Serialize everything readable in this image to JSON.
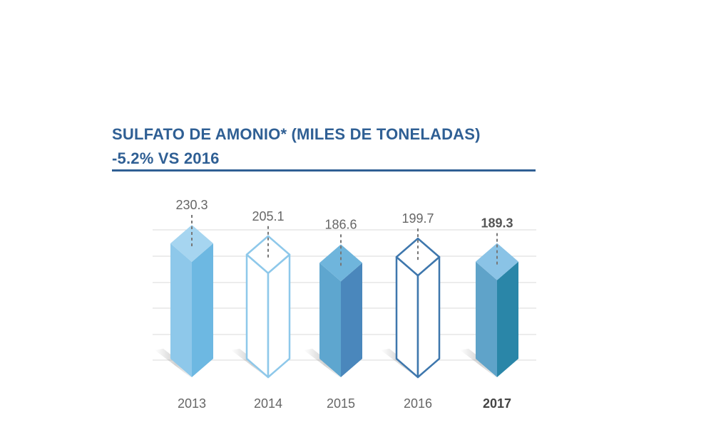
{
  "header": {
    "title_line1": "SULFATO DE AMONIO* (MILES DE TONELADAS)",
    "title_line2": "-5.2% VS 2016"
  },
  "colors": {
    "title": "#2f5f94",
    "gridline": "#d9d9d9",
    "label_text": "#666666",
    "dash": "#777777"
  },
  "chart_data": {
    "type": "bar",
    "style": "3d-prism",
    "title": "SULFATO DE AMONIO* (MILES DE TONELADAS)",
    "subtitle": "-5.2% VS 2016",
    "categories": [
      "2013",
      "2014",
      "2015",
      "2016",
      "2017"
    ],
    "values": [
      230.3,
      205.1,
      186.6,
      199.7,
      189.3
    ],
    "value_labels": [
      "230.3",
      "205.1",
      "186.6",
      "199.7",
      "189.3"
    ],
    "highlight_index": 4,
    "bar_styles": [
      {
        "fill": "solid",
        "left": "#8ec8ea",
        "right": "#6db8e2",
        "top": "#a6d5f0"
      },
      {
        "fill": "outline",
        "stroke": "#8ec8ea"
      },
      {
        "fill": "solid",
        "left": "#5ea6cf",
        "right": "#4a87bc",
        "top": "#6fb5dc"
      },
      {
        "fill": "outline",
        "stroke": "#3e77ad"
      },
      {
        "fill": "solid",
        "left": "#5fa3c9",
        "right": "#2a86a8",
        "top": "#8ac3e6"
      }
    ],
    "grid": true,
    "legend": "none"
  }
}
